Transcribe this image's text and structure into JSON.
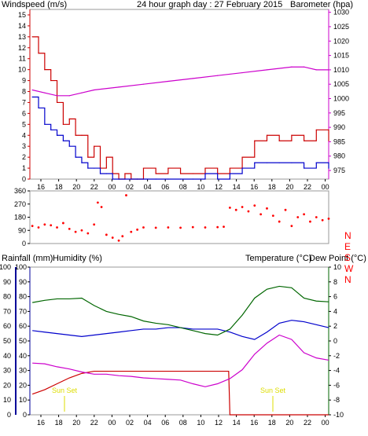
{
  "title": "24 hour graph day : 27 February 2015",
  "colors": {
    "wind": "#cc0000",
    "wind_gust": "#cc0000",
    "wind_avg": "#0000cc",
    "barometer": "#cc00cc",
    "direction": "#ff0000",
    "rain": "#cc0000",
    "humidity": "#0000cc",
    "temperature": "#006600",
    "dewpoint": "#cc00cc",
    "sunset": "#dddd00",
    "axis_left": "#000099",
    "axis_right": "#006600"
  },
  "chart_data": [
    {
      "type": "line",
      "panel": "wind-barometer",
      "title": "24 hour graph day : 27 February 2015",
      "left_label": "Windspeed (m/s)",
      "right_label": "Barometer (hpa)",
      "y_ticks_left": [
        "0",
        "1",
        "2",
        "3",
        "4",
        "5",
        "6",
        "7",
        "8",
        "9",
        "10",
        "11",
        "12",
        "13",
        "14",
        "15"
      ],
      "y_ticks_right": [
        "975",
        "980",
        "985",
        "990",
        "995",
        "1000",
        "1005",
        "1010",
        "1015",
        "1020",
        "1025",
        "1030"
      ],
      "x_ticks": [
        "16",
        "18",
        "20",
        "22",
        "00",
        "02",
        "04",
        "06",
        "08",
        "10",
        "12",
        "14",
        "16",
        "18",
        "20",
        "22",
        "00"
      ],
      "ylim_left": [
        0,
        15.5
      ],
      "ylim_right": [
        972,
        1031
      ],
      "x_hours_range": [
        14.8,
        39
      ],
      "series": [
        {
          "name": "Windspeed (m/s)",
          "role": "gust",
          "x": [
            15,
            15.5,
            16,
            16.5,
            17,
            17.5,
            18,
            18.5,
            19,
            19.5,
            20,
            20.5,
            21,
            21.5,
            22,
            22.5,
            23,
            23.5,
            24,
            25,
            26,
            27,
            28,
            29,
            30,
            31,
            32,
            33,
            34,
            35,
            36,
            37,
            38,
            39
          ],
          "y": [
            13,
            11.5,
            10,
            9,
            7,
            5,
            5.5,
            4,
            4,
            2,
            3,
            1,
            2,
            0.5,
            0,
            0.5,
            0,
            0,
            1,
            0.5,
            1,
            0.5,
            0.5,
            1,
            0.5,
            1,
            2,
            3.5,
            4,
            3.5,
            4,
            3.5,
            4.5,
            3.5
          ]
        },
        {
          "name": "Windspeed (m/s)",
          "role": "average",
          "x": [
            15,
            15.5,
            16,
            16.5,
            17,
            17.5,
            18,
            18.5,
            19,
            19.5,
            20,
            20.5,
            21,
            21.5,
            22,
            22.5,
            23,
            23.5,
            24,
            25,
            26,
            27,
            28,
            29,
            30,
            31,
            32,
            33,
            34,
            35,
            36,
            37,
            38,
            39
          ],
          "y": [
            7.5,
            6.5,
            5,
            4.5,
            4,
            3.5,
            3,
            2,
            1.5,
            1,
            1,
            0.5,
            0.5,
            0,
            0,
            0,
            0,
            0,
            0,
            0,
            0,
            0,
            0,
            0.5,
            0,
            0.5,
            1,
            1.5,
            1.5,
            1.5,
            1.5,
            1,
            1.5,
            1
          ]
        },
        {
          "name": "Barometer (hpa)",
          "role": "barometer",
          "x": [
            15,
            16,
            17,
            18,
            19,
            20,
            22,
            24,
            26,
            28,
            30,
            32,
            34,
            36,
            37,
            38,
            39
          ],
          "y": [
            1003,
            1002,
            1001,
            1001,
            1002,
            1003,
            1004,
            1005,
            1006,
            1007,
            1008,
            1009,
            1010,
            1011,
            1011,
            1010,
            1010
          ]
        }
      ]
    },
    {
      "type": "scatter",
      "panel": "wind-direction",
      "y_ticks_left": [
        "0",
        "90",
        "180",
        "270",
        "360"
      ],
      "direction_labels": [
        "N",
        "W",
        "S",
        "E",
        "N"
      ],
      "ylim": [
        0,
        360
      ],
      "x_hours_range": [
        14.8,
        39
      ],
      "series": [
        {
          "name": "Wind direction",
          "x": [
            15,
            15.5,
            16,
            16.5,
            17,
            17.5,
            18,
            18.5,
            19,
            19.5,
            20,
            20.3,
            20.6,
            21,
            21.5,
            22,
            22.3,
            22.6,
            23,
            23.5,
            24,
            25,
            26,
            27,
            28,
            29,
            30,
            30.5,
            31,
            31.5,
            32,
            32.5,
            33,
            33.5,
            34,
            34.5,
            35,
            35.5,
            36,
            36.5,
            37,
            37.5,
            38,
            38.5,
            39
          ],
          "y": [
            120,
            110,
            130,
            125,
            110,
            140,
            100,
            80,
            90,
            70,
            130,
            280,
            250,
            60,
            40,
            20,
            50,
            330,
            80,
            95,
            110,
            108,
            110,
            108,
            112,
            110,
            112,
            115,
            245,
            230,
            250,
            220,
            260,
            200,
            240,
            190,
            150,
            230,
            120,
            180,
            200,
            150,
            180,
            160,
            170
          ]
        }
      ]
    },
    {
      "type": "line",
      "panel": "rain-humidity-temperature",
      "left_label_rain": "Rainfall (mm)",
      "left_label_humidity": "Humidity (%)",
      "right_label_temperature": "Temperature (°C)",
      "right_label_dewpoint": "Dew Point (°C)",
      "y_ticks_rain": [
        "0",
        "10",
        "20",
        "30",
        "40",
        "50",
        "60",
        "70",
        "80",
        "90",
        "100"
      ],
      "y_ticks_humidity": [
        "0",
        "10",
        "20",
        "30",
        "40",
        "50",
        "60",
        "70",
        "80",
        "90",
        "100"
      ],
      "y_ticks_right": [
        "-10",
        "-8",
        "-6",
        "-4",
        "-2",
        "0",
        "2",
        "4",
        "6",
        "8",
        "10"
      ],
      "x_ticks": [
        "16",
        "18",
        "20",
        "22",
        "00",
        "02",
        "04",
        "06",
        "08",
        "10",
        "12",
        "14",
        "16",
        "18",
        "20",
        "22",
        "00"
      ],
      "ylim_left": [
        0,
        100
      ],
      "ylim_right": [
        -10,
        10
      ],
      "x_hours_range": [
        14.8,
        39
      ],
      "annotations": [
        {
          "text": "Sun Set",
          "x_hour": 17.5
        },
        {
          "text": "Sun Set",
          "x_hour": 41.6
        }
      ],
      "series": [
        {
          "name": "Rainfall (mm)",
          "x": [
            15,
            16,
            17,
            18,
            19,
            20,
            21,
            22,
            23,
            24,
            26,
            28,
            30,
            30.9,
            31,
            32,
            34,
            36,
            38,
            39
          ],
          "y": [
            14,
            17,
            21,
            25,
            28,
            29.5,
            29.5,
            29.5,
            29.5,
            29.5,
            29.5,
            29.5,
            29.5,
            29.5,
            0,
            0,
            0,
            0,
            0,
            0
          ]
        },
        {
          "name": "Humidity (%)",
          "x": [
            15,
            16,
            17,
            18,
            19,
            20,
            21,
            22,
            23,
            24,
            25,
            26,
            27,
            28,
            29,
            30,
            31,
            32,
            33,
            34,
            35,
            36,
            37,
            38,
            39
          ],
          "y": [
            57,
            56,
            55,
            54,
            53,
            54,
            55,
            56,
            57,
            58,
            58,
            59,
            59,
            58,
            58,
            58,
            56,
            53,
            51,
            56,
            62,
            64,
            63,
            61,
            59
          ]
        },
        {
          "name": "Temperature (°C)",
          "x": [
            15,
            16,
            17,
            18,
            19,
            20,
            21,
            22,
            23,
            24,
            25,
            26,
            27,
            28,
            29,
            30,
            31,
            32,
            33,
            34,
            35,
            36,
            37,
            38,
            39
          ],
          "y": [
            5.2,
            5.5,
            5.7,
            5.7,
            5.8,
            4.8,
            4.0,
            3.6,
            3.3,
            2.7,
            2.4,
            2.2,
            1.8,
            1.4,
            1.0,
            0.8,
            1.6,
            3.5,
            5.8,
            7.0,
            7.4,
            7.2,
            5.8,
            5.4,
            5.3
          ]
        },
        {
          "name": "Dew Point (°C)",
          "x": [
            15,
            16,
            17,
            18,
            19,
            20,
            21,
            22,
            23,
            24,
            25,
            26,
            27,
            28,
            29,
            30,
            31,
            32,
            33,
            34,
            35,
            36,
            37,
            38,
            39
          ],
          "y": [
            -3.0,
            -3.1,
            -3.5,
            -3.8,
            -4.2,
            -4.5,
            -4.5,
            -4.7,
            -4.8,
            -5.0,
            -5.1,
            -5.2,
            -5.3,
            -5.8,
            -6.2,
            -5.8,
            -5.1,
            -3.9,
            -1.8,
            -0.3,
            0.8,
            0.2,
            -1.6,
            -2.3,
            -2.6
          ]
        }
      ]
    }
  ]
}
